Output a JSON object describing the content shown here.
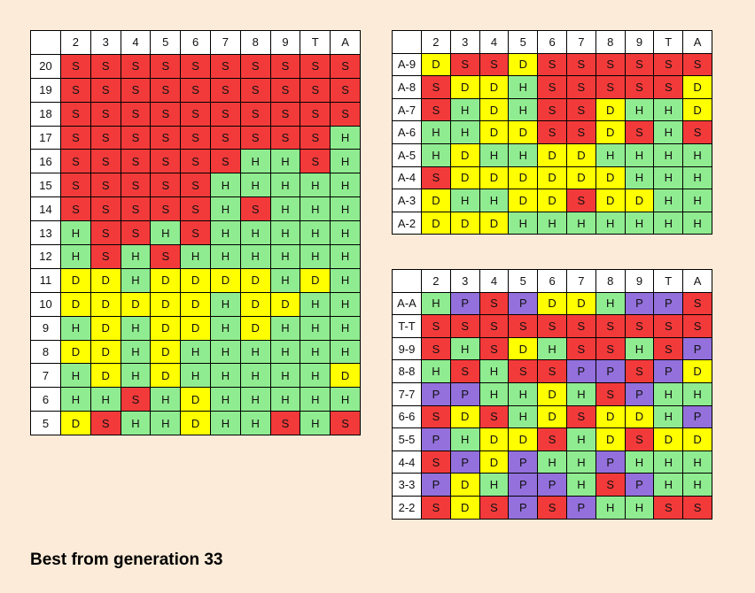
{
  "columns": [
    "2",
    "3",
    "4",
    "5",
    "6",
    "7",
    "8",
    "9",
    "T",
    "A"
  ],
  "colors": {
    "S": "#f33a3a",
    "H": "#90ec90",
    "D": "#ffff00",
    "P": "#9370db"
  },
  "hard": [
    {
      "label": "20",
      "cells": [
        "S",
        "S",
        "S",
        "S",
        "S",
        "S",
        "S",
        "S",
        "S",
        "S"
      ]
    },
    {
      "label": "19",
      "cells": [
        "S",
        "S",
        "S",
        "S",
        "S",
        "S",
        "S",
        "S",
        "S",
        "S"
      ]
    },
    {
      "label": "18",
      "cells": [
        "S",
        "S",
        "S",
        "S",
        "S",
        "S",
        "S",
        "S",
        "S",
        "S"
      ]
    },
    {
      "label": "17",
      "cells": [
        "S",
        "S",
        "S",
        "S",
        "S",
        "S",
        "S",
        "S",
        "S",
        "H"
      ]
    },
    {
      "label": "16",
      "cells": [
        "S",
        "S",
        "S",
        "S",
        "S",
        "S",
        "H",
        "H",
        "S",
        "H"
      ]
    },
    {
      "label": "15",
      "cells": [
        "S",
        "S",
        "S",
        "S",
        "S",
        "H",
        "H",
        "H",
        "H",
        "H"
      ]
    },
    {
      "label": "14",
      "cells": [
        "S",
        "S",
        "S",
        "S",
        "S",
        "H",
        "S",
        "H",
        "H",
        "H"
      ]
    },
    {
      "label": "13",
      "cells": [
        "H",
        "S",
        "S",
        "H",
        "S",
        "H",
        "H",
        "H",
        "H",
        "H"
      ]
    },
    {
      "label": "12",
      "cells": [
        "H",
        "S",
        "H",
        "S",
        "H",
        "H",
        "H",
        "H",
        "H",
        "H"
      ]
    },
    {
      "label": "11",
      "cells": [
        "D",
        "D",
        "H",
        "D",
        "D",
        "D",
        "D",
        "H",
        "D",
        "H"
      ]
    },
    {
      "label": "10",
      "cells": [
        "D",
        "D",
        "D",
        "D",
        "D",
        "H",
        "D",
        "D",
        "H",
        "H"
      ]
    },
    {
      "label": "9",
      "cells": [
        "H",
        "D",
        "H",
        "D",
        "D",
        "H",
        "D",
        "H",
        "H",
        "H"
      ]
    },
    {
      "label": "8",
      "cells": [
        "D",
        "D",
        "H",
        "D",
        "H",
        "H",
        "H",
        "H",
        "H",
        "H"
      ]
    },
    {
      "label": "7",
      "cells": [
        "H",
        "D",
        "H",
        "D",
        "H",
        "H",
        "H",
        "H",
        "H",
        "D"
      ]
    },
    {
      "label": "6",
      "cells": [
        "H",
        "H",
        "S",
        "H",
        "D",
        "H",
        "H",
        "H",
        "H",
        "H"
      ]
    },
    {
      "label": "5",
      "cells": [
        "D",
        "S",
        "H",
        "H",
        "D",
        "H",
        "H",
        "S",
        "H",
        "S"
      ]
    }
  ],
  "soft": [
    {
      "label": "A-9",
      "cells": [
        "D",
        "S",
        "S",
        "D",
        "S",
        "S",
        "S",
        "S",
        "S",
        "S"
      ]
    },
    {
      "label": "A-8",
      "cells": [
        "S",
        "D",
        "D",
        "H",
        "S",
        "S",
        "S",
        "S",
        "S",
        "D"
      ]
    },
    {
      "label": "A-7",
      "cells": [
        "S",
        "H",
        "D",
        "H",
        "S",
        "S",
        "D",
        "H",
        "H",
        "D"
      ]
    },
    {
      "label": "A-6",
      "cells": [
        "H",
        "H",
        "D",
        "D",
        "S",
        "S",
        "D",
        "S",
        "H",
        "S"
      ]
    },
    {
      "label": "A-5",
      "cells": [
        "H",
        "D",
        "H",
        "H",
        "D",
        "D",
        "H",
        "H",
        "H",
        "H"
      ]
    },
    {
      "label": "A-4",
      "cells": [
        "S",
        "D",
        "D",
        "D",
        "D",
        "D",
        "D",
        "H",
        "H",
        "H"
      ]
    },
    {
      "label": "A-3",
      "cells": [
        "D",
        "H",
        "H",
        "D",
        "D",
        "S",
        "D",
        "D",
        "H",
        "H"
      ]
    },
    {
      "label": "A-2",
      "cells": [
        "D",
        "D",
        "D",
        "H",
        "H",
        "H",
        "H",
        "H",
        "H",
        "H"
      ]
    }
  ],
  "pairs": [
    {
      "label": "A-A",
      "cells": [
        "H",
        "P",
        "S",
        "P",
        "D",
        "D",
        "H",
        "P",
        "P",
        "S"
      ]
    },
    {
      "label": "T-T",
      "cells": [
        "S",
        "S",
        "S",
        "S",
        "S",
        "S",
        "S",
        "S",
        "S",
        "S"
      ]
    },
    {
      "label": "9-9",
      "cells": [
        "S",
        "H",
        "S",
        "D",
        "H",
        "S",
        "S",
        "H",
        "S",
        "P"
      ]
    },
    {
      "label": "8-8",
      "cells": [
        "H",
        "S",
        "H",
        "S",
        "S",
        "P",
        "P",
        "S",
        "P",
        "D"
      ]
    },
    {
      "label": "7-7",
      "cells": [
        "P",
        "P",
        "H",
        "H",
        "D",
        "H",
        "S",
        "P",
        "H",
        "H"
      ]
    },
    {
      "label": "6-6",
      "cells": [
        "S",
        "D",
        "S",
        "H",
        "D",
        "S",
        "D",
        "D",
        "H",
        "P"
      ]
    },
    {
      "label": "5-5",
      "cells": [
        "P",
        "H",
        "D",
        "D",
        "S",
        "H",
        "D",
        "S",
        "D",
        "D"
      ]
    },
    {
      "label": "4-4",
      "cells": [
        "S",
        "P",
        "D",
        "P",
        "H",
        "H",
        "P",
        "H",
        "H",
        "H"
      ]
    },
    {
      "label": "3-3",
      "cells": [
        "P",
        "D",
        "H",
        "P",
        "P",
        "H",
        "S",
        "P",
        "H",
        "H"
      ]
    },
    {
      "label": "2-2",
      "cells": [
        "S",
        "D",
        "S",
        "P",
        "S",
        "P",
        "H",
        "H",
        "S",
        "S"
      ]
    }
  ],
  "caption": "Best from generation 33"
}
